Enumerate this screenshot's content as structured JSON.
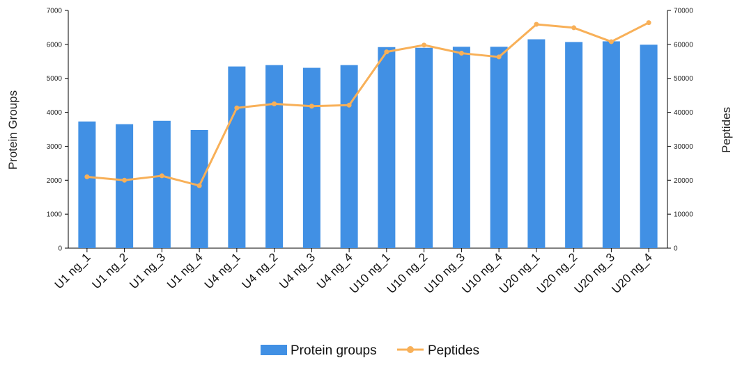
{
  "chart_data": {
    "type": "bar",
    "categories": [
      "U1 ng_1",
      "U1 ng_2",
      "U1 ng_3",
      "U1 ng_4",
      "U4 ng_1",
      "U4 ng_2",
      "U4 ng_3",
      "U4 ng_4",
      "U10 ng_1",
      "U10 ng_2",
      "U10 ng_3",
      "U10 ng_4",
      "U20 ng_1",
      "U20 ng_2",
      "U20 ng_3",
      "U20 ng_4"
    ],
    "series": [
      {
        "name": "Protein groups",
        "type": "bar",
        "axis": "left",
        "color": "#4190e4",
        "values": [
          3730,
          3650,
          3750,
          3480,
          5350,
          5390,
          5310,
          5390,
          5920,
          5900,
          5930,
          5930,
          6150,
          6070,
          6090,
          5990
        ]
      },
      {
        "name": "Peptides",
        "type": "line",
        "axis": "right",
        "color": "#f8b058",
        "values": [
          21000,
          20000,
          21300,
          18400,
          41300,
          42500,
          41800,
          42100,
          57800,
          59800,
          57400,
          56300,
          65900,
          64900,
          60800,
          66400
        ]
      }
    ],
    "ylabel": "Protein Groups",
    "ylabel_right": "Peptides",
    "ylim": [
      0,
      7000
    ],
    "ylim_right": [
      0,
      70000
    ],
    "yticks": [
      "0",
      "1000",
      "2000",
      "3000",
      "4000",
      "5000",
      "6000",
      "7000"
    ],
    "yticks_right": [
      "0",
      "10000",
      "20000",
      "30000",
      "40000",
      "50000",
      "60000",
      "70000"
    ],
    "grid": false,
    "legend_position": "bottom-center"
  }
}
